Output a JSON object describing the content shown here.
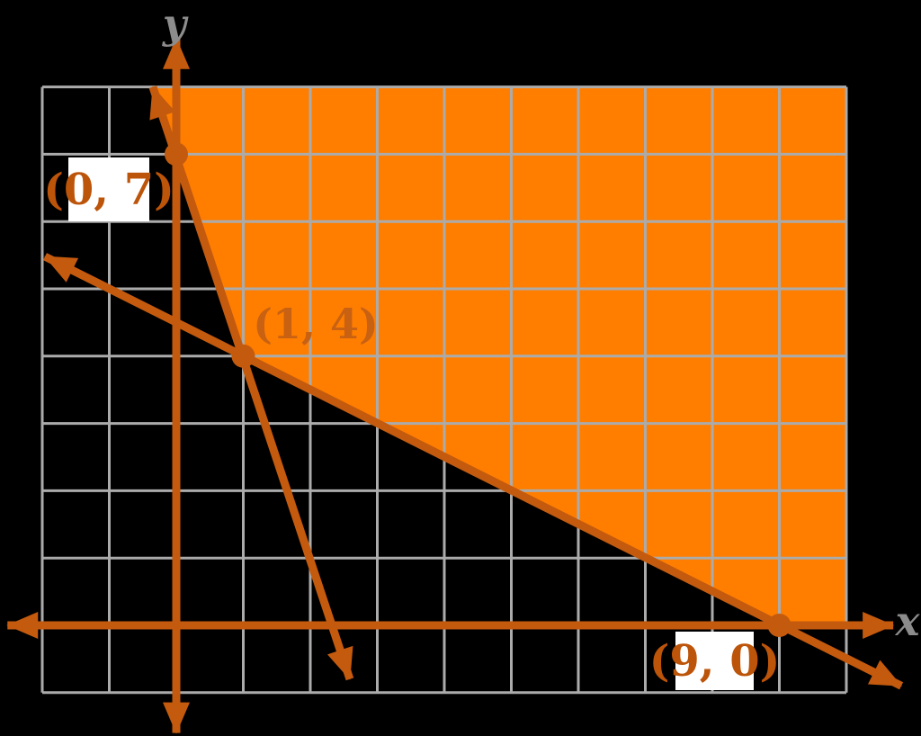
{
  "chart_data": {
    "type": "region-plot",
    "title": "",
    "xlabel": "x",
    "ylabel": "y",
    "grid": {
      "x_min": -2,
      "x_max": 10,
      "y_min": -1,
      "y_max": 8,
      "step": 1,
      "grid_on": true
    },
    "axes": {
      "x_axis": {
        "y": 0,
        "from": -2.52,
        "to": 10.7
      },
      "y_axis": {
        "x": 0,
        "from": -1.6,
        "to": 8.72
      }
    },
    "boundary_lines": [
      {
        "name": "line-through-(0,7)-(1,4)",
        "through": [
          [
            0,
            7
          ],
          [
            1,
            4
          ]
        ],
        "draw_from": [
          -0.35,
          8.0
        ],
        "draw_to": [
          2.59,
          -0.8
        ]
      },
      {
        "name": "line-through-(1,4)-(9,0)",
        "through": [
          [
            1,
            4
          ],
          [
            9,
            0
          ]
        ],
        "draw_from": [
          -1.96,
          5.48
        ],
        "draw_to": [
          10.82,
          -0.9
        ]
      }
    ],
    "region": {
      "fill_vertices": [
        [
          -0.333,
          8
        ],
        [
          0,
          7
        ],
        [
          1,
          4
        ],
        [
          9,
          0
        ],
        [
          10,
          0
        ],
        [
          10,
          8
        ]
      ]
    },
    "points": [
      {
        "x": 0,
        "y": 7,
        "label": "(0, 7)",
        "label_style": "boxed"
      },
      {
        "x": 1,
        "y": 4,
        "label": "(1, 4)",
        "label_style": "on-fill"
      },
      {
        "x": 9,
        "y": 0,
        "label": "(9, 0)",
        "label_style": "boxed"
      }
    ],
    "colors": {
      "region_fill": "#FF7E00",
      "line_stroke": "#C45A0E",
      "grid_line": "#ABABAB",
      "point_label_text": "#BC5409",
      "point_label_on_fill_text": "#C86112",
      "axis_letter_text": "#8C8C8C",
      "label_background": "#FFFFFF",
      "background": "#000000"
    }
  }
}
